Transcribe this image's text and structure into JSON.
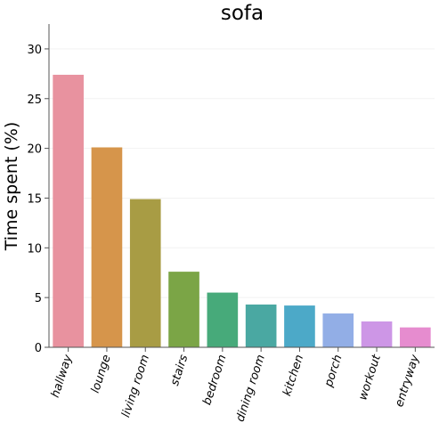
{
  "chart_data": {
    "type": "bar",
    "title": "sofa",
    "xlabel": "",
    "ylabel": "Time spent (%)",
    "categories": [
      "hallway",
      "lounge",
      "living room",
      "stairs",
      "bedroom",
      "dining room",
      "kitchen",
      "porch",
      "workout",
      "entryway"
    ],
    "values": [
      27.4,
      20.1,
      14.9,
      7.6,
      5.5,
      4.3,
      4.2,
      3.4,
      2.6,
      2.0
    ],
    "colors": [
      "#e8929f",
      "#d6954b",
      "#a89c44",
      "#7ba546",
      "#47aa7a",
      "#4aa8a2",
      "#4ca9c8",
      "#92aee6",
      "#cd96e6",
      "#e68ccf"
    ],
    "ylim": [
      0,
      32.5
    ],
    "yticks": [
      0,
      5,
      10,
      15,
      20,
      25,
      30
    ],
    "grid": true,
    "legend": "none"
  }
}
